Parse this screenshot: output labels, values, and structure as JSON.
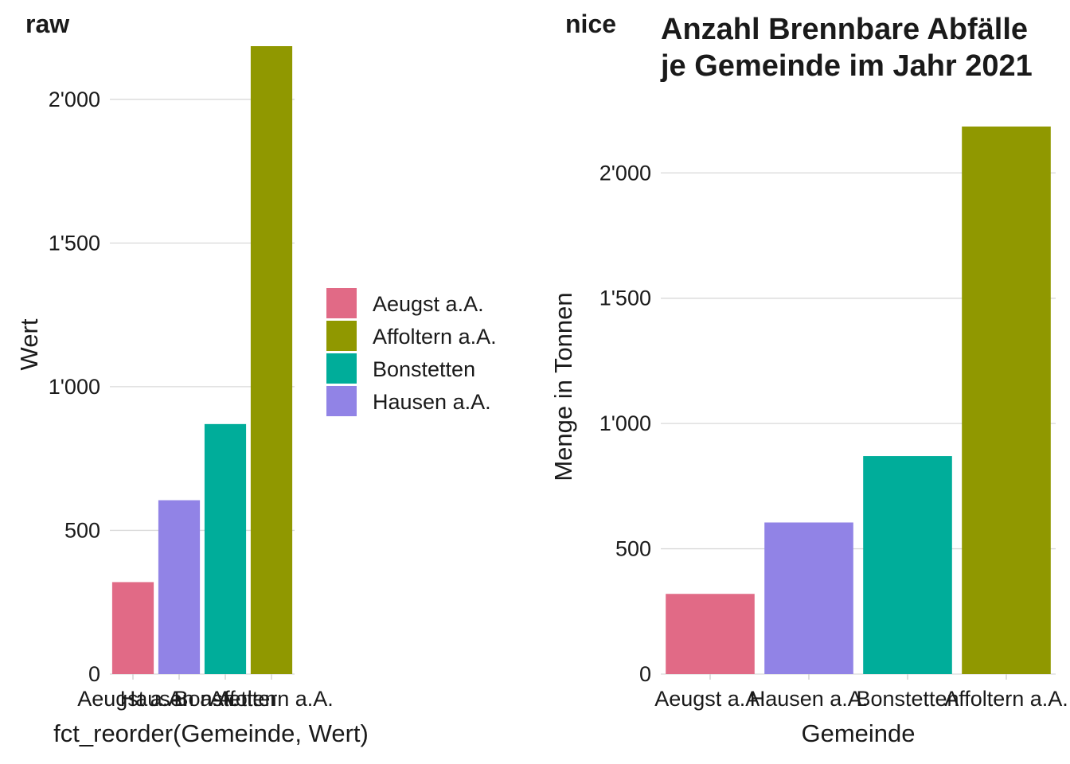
{
  "chart_data": [
    {
      "type": "bar",
      "panel_tag": "raw",
      "title": "",
      "categories": [
        "Aeugst a.A.",
        "Hausen a.A.",
        "Bonstetten",
        "Affoltern a.A."
      ],
      "values": [
        320,
        605,
        870,
        2185
      ],
      "bar_colors": [
        "#E16A86",
        "#9183E6",
        "#00AD9A",
        "#909800"
      ],
      "xlabel": "fct_reorder(Gemeinde, Wert)",
      "ylabel": "Wert",
      "y_ticks": [
        0,
        500,
        1000,
        1500,
        2000
      ],
      "y_tick_labels": [
        "0",
        "500",
        "1'000",
        "1'500",
        "2'000"
      ],
      "ylim": [
        0,
        2185
      ],
      "grid": "horizontal major",
      "legend": {
        "placement": "right",
        "entries": [
          {
            "label": "Aeugst a.A.",
            "color": "#E16A86"
          },
          {
            "label": "Affoltern a.A.",
            "color": "#909800"
          },
          {
            "label": "Bonstetten",
            "color": "#00AD9A"
          },
          {
            "label": "Hausen a.A.",
            "color": "#9183E6"
          }
        ]
      }
    },
    {
      "type": "bar",
      "panel_tag": "nice",
      "title": [
        "Anzahl Brennbare Abfälle",
        "je Gemeinde im Jahr 2021"
      ],
      "categories": [
        "Aeugst a.A.",
        "Hausen a.A.",
        "Bonstetten",
        "Affoltern a.A."
      ],
      "values": [
        320,
        605,
        870,
        2185
      ],
      "bar_colors": [
        "#E16A86",
        "#9183E6",
        "#00AD9A",
        "#909800"
      ],
      "xlabel": "Gemeinde",
      "ylabel": "Menge in Tonnen",
      "y_ticks": [
        0,
        500,
        1000,
        1500,
        2000
      ],
      "y_tick_labels": [
        "0",
        "500",
        "1'000",
        "1'500",
        "2'000"
      ],
      "ylim": [
        0,
        2185
      ],
      "grid": "horizontal major",
      "legend": null
    }
  ]
}
